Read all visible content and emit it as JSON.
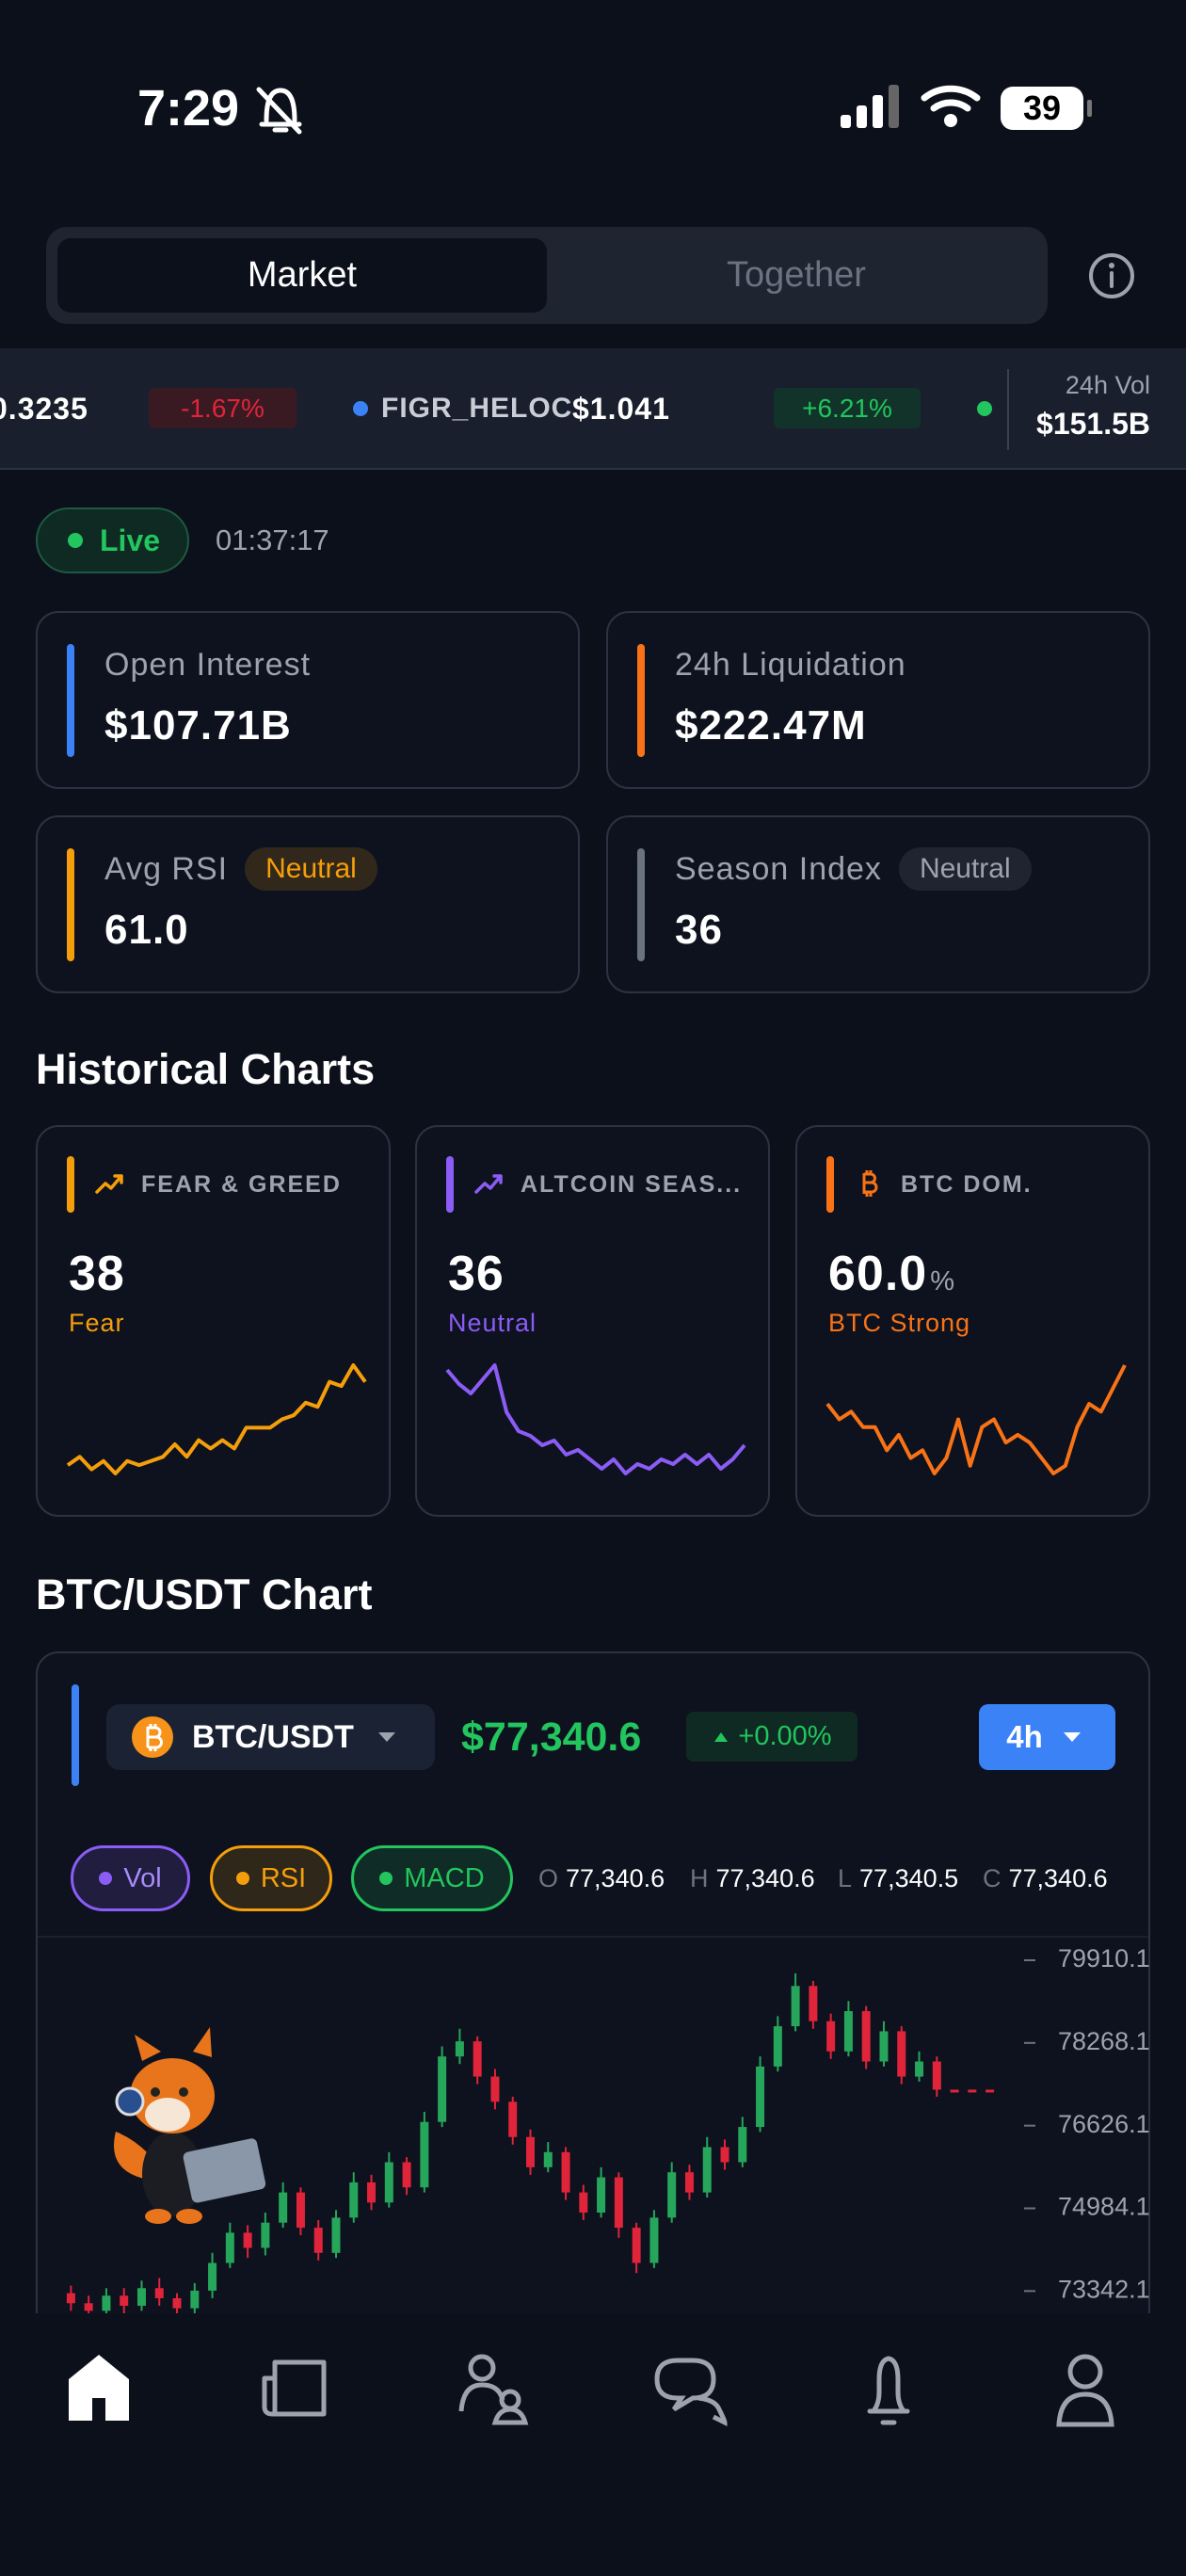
{
  "status_bar": {
    "time": "7:29",
    "battery": "39"
  },
  "tabs": [
    "Market",
    "Together"
  ],
  "ticker": {
    "items": [
      {
        "price": "0.3235",
        "change": "-1.67%"
      },
      {
        "symbol": "FIGR_HELOC",
        "price": "$1.041",
        "change": "+6.21%"
      }
    ],
    "vol_label": "24h Vol",
    "vol_value": "$151.5B"
  },
  "live": {
    "label": "Live",
    "time": "01:37:17"
  },
  "stats": [
    {
      "label": "Open Interest",
      "value": "$107.71B",
      "accent": "#3b82f6"
    },
    {
      "label": "24h Liquidation",
      "value": "$222.47M",
      "accent": "#f97316"
    },
    {
      "label": "Avg RSI",
      "badge": "Neutral",
      "value": "61.0",
      "accent": "#f59e0b"
    },
    {
      "label": "Season Index",
      "badge": "Neutral",
      "value": "36",
      "accent": "#6b7280"
    }
  ],
  "historical": {
    "title": "Historical Charts",
    "cards": [
      {
        "title": "FEAR & GREED",
        "value": "38",
        "status": "Fear",
        "accent": "#f59e0b",
        "values": [
          18,
          20,
          17,
          19,
          16,
          19,
          18,
          19,
          20,
          23,
          20,
          24,
          22,
          24,
          22,
          27,
          27,
          27,
          29,
          30,
          33,
          32,
          38,
          37,
          42,
          38
        ]
      },
      {
        "title": "ALTCOIN SEAS...",
        "value": "36",
        "status": "Neutral",
        "accent": "#8b5cf6",
        "values": [
          52,
          49,
          47,
          50,
          53,
          43,
          39,
          38,
          36,
          37,
          34,
          35,
          33,
          31,
          33,
          30,
          32,
          31,
          33,
          32,
          34,
          32,
          34,
          31,
          33,
          36
        ]
      },
      {
        "title": "BTC DOM.",
        "value": "60.0",
        "unit": "%",
        "status": "BTC Strong",
        "accent": "#f97316",
        "values": [
          59.5,
          59.3,
          59.4,
          59.2,
          59.2,
          58.9,
          59.1,
          58.8,
          58.9,
          58.6,
          58.8,
          59.3,
          58.7,
          59.2,
          59.3,
          59.0,
          59.1,
          59.0,
          58.8,
          58.6,
          58.7,
          59.2,
          59.5,
          59.4,
          59.7,
          60.0
        ]
      }
    ]
  },
  "chart_section": {
    "title": "BTC/USDT Chart",
    "pair": "BTC/USDT",
    "price": "$77,340.6",
    "change": "+0.00%",
    "interval": "4h",
    "indicators": [
      "Vol",
      "RSI",
      "MACD"
    ],
    "ohlc": [
      {
        "k": "O",
        "v": "77,340.6"
      },
      {
        "k": "H",
        "v": "77,340.6"
      },
      {
        "k": "L",
        "v": "77,340.5"
      },
      {
        "k": "C",
        "v": "77,340.6"
      }
    ]
  },
  "chart_data": {
    "type": "candlestick",
    "up_color": "#26a65b",
    "down_color": "#e0243a",
    "ylim": [
      72900,
      80340
    ],
    "yticks": [
      79910.1,
      78268.1,
      76626.1,
      74984.1,
      73342.1
    ],
    "grid": false,
    "open": [
      73300,
      73100,
      72950,
      73250,
      73050,
      73400,
      73200,
      73000,
      73350,
      73900,
      74500,
      74200,
      74700,
      75300,
      74600,
      74100,
      74800,
      75500,
      75100,
      75900,
      75400,
      76700,
      78000,
      78300,
      77600,
      77100,
      76400,
      75800,
      76100,
      75300,
      74900,
      75600,
      74600,
      73900,
      74800,
      75700,
      75300,
      76200,
      75900,
      76600,
      77800,
      78600,
      79400,
      78700,
      78100,
      78900,
      77900,
      78500,
      77600,
      77900,
      77340.6,
      77340.6,
      77340.6
    ],
    "high": [
      73450,
      73250,
      73400,
      73400,
      73550,
      73600,
      73300,
      73500,
      74100,
      74700,
      74650,
      74900,
      75500,
      75400,
      74750,
      74950,
      75700,
      75650,
      76100,
      76000,
      76900,
      78200,
      78550,
      78400,
      77750,
      77200,
      76550,
      76300,
      76200,
      75450,
      75800,
      75700,
      74700,
      74950,
      75900,
      75850,
      76400,
      76350,
      76800,
      78000,
      78800,
      79650,
      79500,
      78850,
      79100,
      79000,
      78700,
      78600,
      78100,
      78000,
      77340.6,
      77340.6,
      77340.6
    ],
    "low": [
      72950,
      72800,
      72850,
      72900,
      72950,
      73050,
      72850,
      72900,
      73200,
      73800,
      74000,
      74050,
      74600,
      74450,
      73950,
      74000,
      74700,
      74950,
      75000,
      75250,
      75300,
      76600,
      77850,
      77450,
      76950,
      76250,
      75650,
      75700,
      75150,
      74750,
      74800,
      74400,
      73700,
      73800,
      74700,
      75150,
      75200,
      75750,
      75800,
      76500,
      77700,
      78500,
      78550,
      77950,
      78000,
      77750,
      77800,
      77450,
      77500,
      77200,
      77340.5,
      77340.5,
      77340.5
    ],
    "close": [
      73100,
      72950,
      73250,
      73050,
      73400,
      73200,
      73000,
      73350,
      73900,
      74500,
      74200,
      74700,
      75300,
      74600,
      74100,
      74800,
      75500,
      75100,
      75900,
      75400,
      76700,
      78000,
      78300,
      77600,
      77100,
      76400,
      75800,
      76100,
      75300,
      74900,
      75600,
      74600,
      73900,
      74800,
      75700,
      75300,
      76200,
      75900,
      76600,
      77800,
      78600,
      79400,
      78700,
      78100,
      78900,
      77900,
      78500,
      77600,
      77900,
      77340.6,
      77340.6,
      77340.6,
      77340.6
    ]
  }
}
